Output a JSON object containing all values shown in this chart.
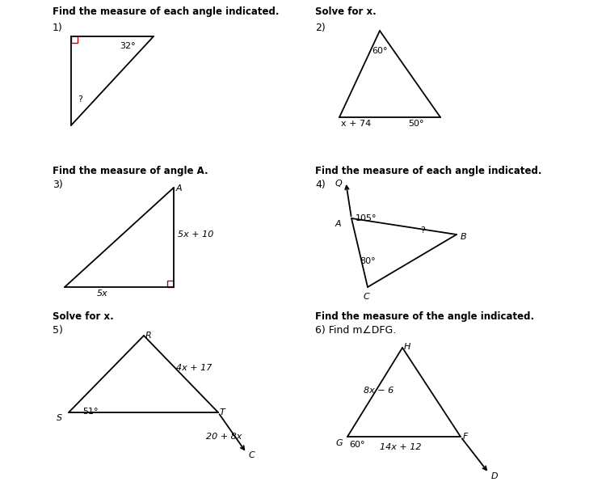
{
  "bg_color": "#ffffff",
  "text_color": "#000000",
  "line_color": "#000000",
  "right_angle_color": "#cc0000",
  "figsize": [
    7.5,
    6.22
  ],
  "dpi": 100,
  "headers": {
    "h1": "Find the measure of each angle indicated.",
    "h2": "Solve for x.",
    "h3": "Find the measure of angle A.",
    "h4": "Find the measure of each angle indicated.",
    "h5": "Solve for x.",
    "h6": "Find the measure of the angle indicated.",
    "h6b": "6) Find m∠DFG."
  },
  "fontsize_header": 8.5,
  "fontsize_label": 8,
  "fontsize_number": 9,
  "lw": 1.3
}
